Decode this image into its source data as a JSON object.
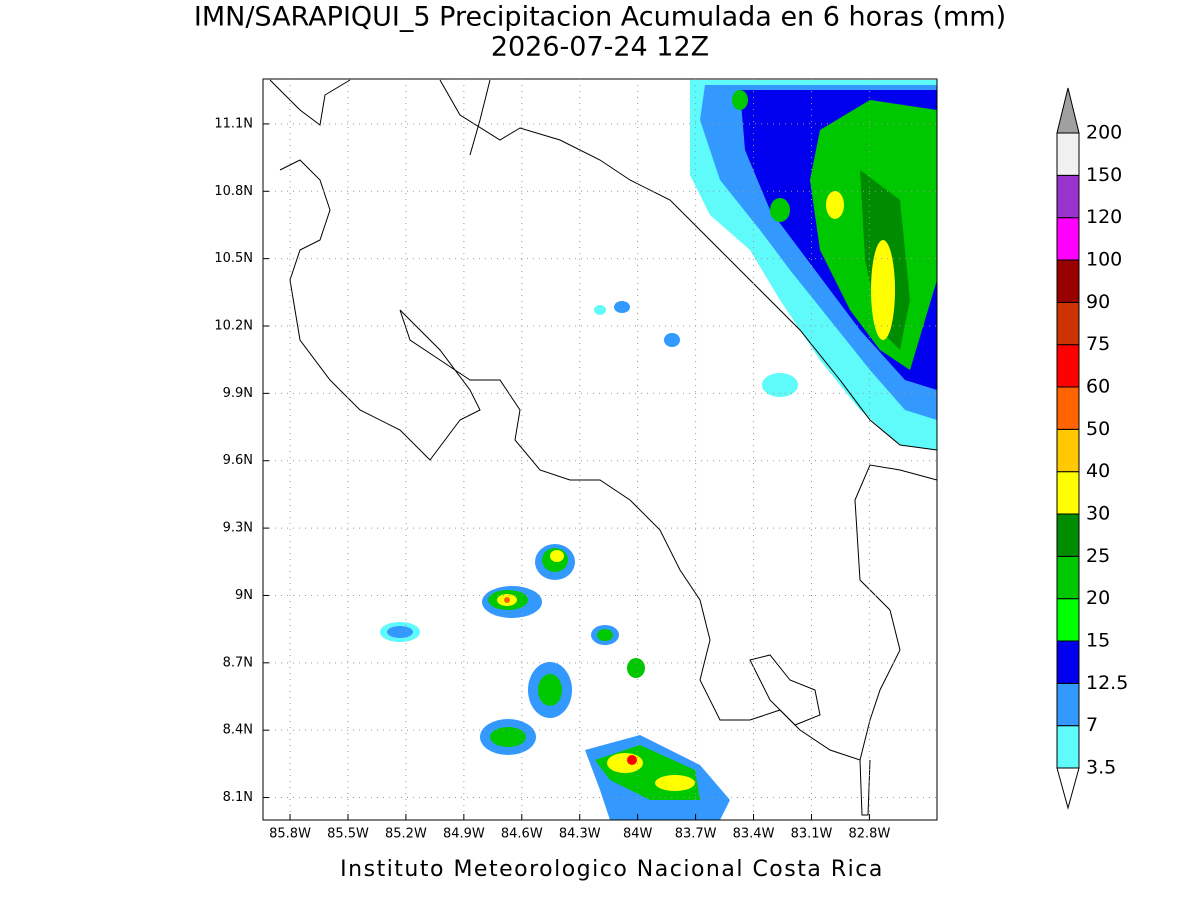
{
  "header": {
    "title": "IMN/SARAPIQUI_5 Precipitacion Acumulada en 6 horas (mm)",
    "subtitle": "2026-07-24 12Z"
  },
  "map": {
    "xlim": [
      -85.94,
      -82.45
    ],
    "ylim": [
      8.0,
      11.3
    ],
    "xticks": [
      {
        "value": -85.8,
        "label": "85.8W"
      },
      {
        "value": -85.5,
        "label": "85.5W"
      },
      {
        "value": -85.2,
        "label": "85.2W"
      },
      {
        "value": -84.9,
        "label": "84.9W"
      },
      {
        "value": -84.6,
        "label": "84.6W"
      },
      {
        "value": -84.3,
        "label": "84.3W"
      },
      {
        "value": -84.0,
        "label": "84W"
      },
      {
        "value": -83.7,
        "label": "83.7W"
      },
      {
        "value": -83.4,
        "label": "83.4W"
      },
      {
        "value": -83.1,
        "label": "83.1W"
      },
      {
        "value": -82.8,
        "label": "82.8W"
      }
    ],
    "yticks": [
      {
        "value": 8.1,
        "label": "8.1N"
      },
      {
        "value": 8.4,
        "label": "8.4N"
      },
      {
        "value": 8.7,
        "label": "8.7N"
      },
      {
        "value": 9.0,
        "label": "9N"
      },
      {
        "value": 9.3,
        "label": "9.3N"
      },
      {
        "value": 9.6,
        "label": "9.6N"
      },
      {
        "value": 9.9,
        "label": "9.9N"
      },
      {
        "value": 10.2,
        "label": "10.2N"
      },
      {
        "value": 10.5,
        "label": "10.5N"
      },
      {
        "value": 10.8,
        "label": "10.8N"
      },
      {
        "value": 11.1,
        "label": "11.1N"
      }
    ],
    "grid": true
  },
  "colorbar": {
    "ticks": [
      3.5,
      7,
      12.5,
      15,
      20,
      25,
      30,
      40,
      50,
      60,
      75,
      90,
      100,
      120,
      150,
      200
    ],
    "colors": [
      "#5ffafa",
      "#3399ff",
      "#0000ee",
      "#00ff00",
      "#00c800",
      "#008c00",
      "#ffff00",
      "#ffc800",
      "#ff6400",
      "#ff0000",
      "#cc3300",
      "#990000",
      "#ff00ff",
      "#9933cc",
      "#f0f0f0"
    ],
    "under_color": "#ffffff",
    "over_color": "#a0a0a0"
  },
  "footer": "Instituto Meteorologico Nacional Costa Rica"
}
